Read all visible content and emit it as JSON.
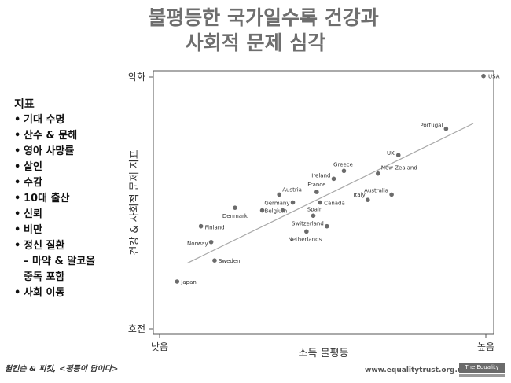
{
  "title": {
    "line1": "불평등한 국가일수록 건강과",
    "line2": "사회적 문제 심각"
  },
  "sidebar": {
    "heading": "지표",
    "items": [
      {
        "bullet": "•",
        "text": "기대 수명"
      },
      {
        "bullet": "•",
        "text": "산수 & 문해"
      },
      {
        "bullet": "•",
        "text": "영아 사망률"
      },
      {
        "bullet": "•",
        "text": "살인"
      },
      {
        "bullet": "•",
        "text": "수감"
      },
      {
        "bullet": "•",
        "text": "10대 출산"
      },
      {
        "bullet": "•",
        "text": "신뢰"
      },
      {
        "bullet": "•",
        "text": "비만"
      },
      {
        "bullet": "•",
        "text": "정신 질환"
      },
      {
        "bullet": "",
        "text": "– 마약 & 알코올"
      },
      {
        "bullet": "",
        "text": "중독 포함"
      },
      {
        "bullet": "•",
        "text": "사회 이동"
      }
    ]
  },
  "chart_data": {
    "type": "scatter",
    "title": "",
    "xlabel": "소득 불평등",
    "ylabel": "건강 & 사회적 문제 지표",
    "x_tick_labels": {
      "low": "낮음",
      "high": "높음"
    },
    "y_tick_labels": {
      "bad": "악화",
      "good": "호전"
    },
    "xlim": [
      0,
      100
    ],
    "ylim": [
      0,
      100
    ],
    "grid": false,
    "colors": {
      "point": "#6b6b6b",
      "trend": "#a8a8a8",
      "axis": "#555555"
    },
    "trendline": [
      [
        10,
        27
      ],
      [
        94,
        80
      ]
    ],
    "points": [
      {
        "x": 97,
        "y": 98,
        "label": "USA"
      },
      {
        "x": 86,
        "y": 78,
        "label": "Portugal"
      },
      {
        "x": 72,
        "y": 68,
        "label": "UK"
      },
      {
        "x": 66,
        "y": 61,
        "label": "New Zealand"
      },
      {
        "x": 56,
        "y": 62,
        "label": "Greece"
      },
      {
        "x": 53,
        "y": 59,
        "label": "Ireland"
      },
      {
        "x": 70,
        "y": 53,
        "label": "Australia"
      },
      {
        "x": 63,
        "y": 51,
        "label": "Italy"
      },
      {
        "x": 48,
        "y": 54,
        "label": "France"
      },
      {
        "x": 49,
        "y": 50,
        "label": "Canada"
      },
      {
        "x": 37,
        "y": 53,
        "label": "Austria"
      },
      {
        "x": 41,
        "y": 50,
        "label": "Germany"
      },
      {
        "x": 32,
        "y": 47,
        "label": "Belgium"
      },
      {
        "x": 47,
        "y": 45,
        "label": "Spain"
      },
      {
        "x": 51,
        "y": 41,
        "label": "Switzerland"
      },
      {
        "x": 45,
        "y": 39,
        "label": "Netherlands"
      },
      {
        "x": 24,
        "y": 48,
        "label": "Denmark"
      },
      {
        "x": 14,
        "y": 41,
        "label": "Finland"
      },
      {
        "x": 17,
        "y": 35,
        "label": "Norway"
      },
      {
        "x": 18,
        "y": 28,
        "label": "Sweden"
      },
      {
        "x": 7,
        "y": 20,
        "label": "Japan"
      },
      {
        "x": 38,
        "y": 47,
        "label": ""
      }
    ]
  },
  "footer": {
    "citation": "윌킨슨 & 피킷, <평등이 답이다>",
    "url": "www.equalitytrust.org.uk",
    "logo": "The Equality Trust"
  }
}
